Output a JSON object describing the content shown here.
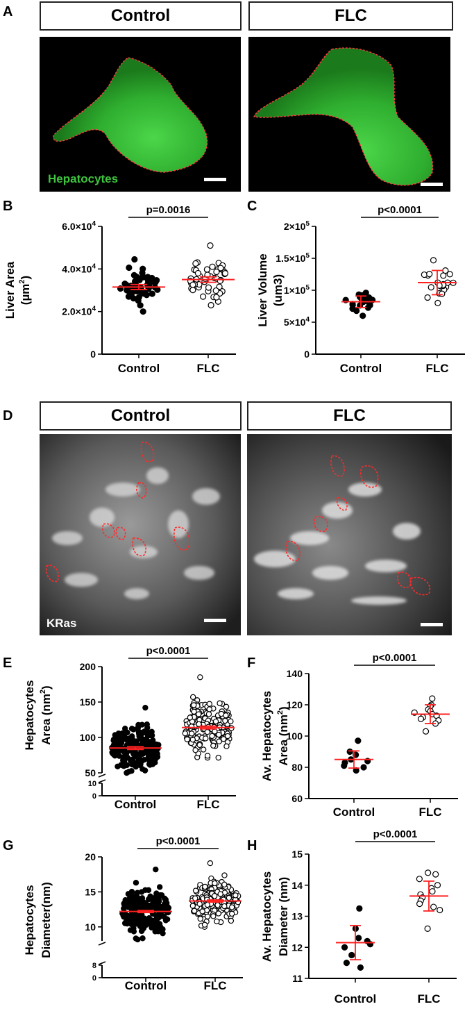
{
  "panelA": {
    "letter": "A",
    "header_control": "Control",
    "header_flc": "FLC",
    "stain_label": "Hepatocytes",
    "colors": {
      "stain": "#3ec43e",
      "outline": "#ff3b3b"
    }
  },
  "panelD": {
    "letter": "D",
    "header_control": "Control",
    "header_flc": "FLC",
    "stain_label": "KRas"
  },
  "chart_data": [
    {
      "id": "B",
      "type": "scatter",
      "ylabel_line1": "Liver Area",
      "ylabel_line2_prefix": "(µm",
      "ylabel_sup": "2",
      "ylabel_line2_suffix": ")",
      "categories": [
        "Control",
        "FLC"
      ],
      "pvalue": "p=0.0016",
      "ylim": [
        0,
        60000
      ],
      "yticks": [
        {
          "value": 0,
          "base": "0",
          "exp": ""
        },
        {
          "value": 20000,
          "base": "2.0×10",
          "exp": "4"
        },
        {
          "value": 40000,
          "base": "4.0×10",
          "exp": "4"
        },
        {
          "value": 60000,
          "base": "6.0×10",
          "exp": "4"
        }
      ],
      "series": [
        {
          "category": "Control",
          "marker": "filled",
          "mean": 31500,
          "err": 1200,
          "count": 50,
          "min": 20000,
          "max": 44500
        },
        {
          "category": "FLC",
          "marker": "open",
          "mean": 35000,
          "err": 1300,
          "count": 50,
          "min": 23000,
          "max": 51000
        }
      ]
    },
    {
      "id": "C",
      "type": "scatter",
      "ylabel_line1": "Liver Volume",
      "ylabel_line2_prefix": "(um3)",
      "ylabel_sup": "",
      "ylabel_line2_suffix": "",
      "categories": [
        "Control",
        "FLC"
      ],
      "pvalue": "p<0.0001",
      "ylim": [
        0,
        200000
      ],
      "yticks": [
        {
          "value": 0,
          "base": "0",
          "exp": ""
        },
        {
          "value": 50000,
          "base": "5×10",
          "exp": "4"
        },
        {
          "value": 100000,
          "base": "1×10",
          "exp": "5"
        },
        {
          "value": 150000,
          "base": "1.5×10",
          "exp": "5"
        },
        {
          "value": 200000,
          "base": "2×10",
          "exp": "5"
        }
      ],
      "series": [
        {
          "category": "Control",
          "marker": "filled",
          "mean": 82000,
          "sd": 9000,
          "count": 22,
          "min": 60000,
          "max": 96000
        },
        {
          "category": "FLC",
          "marker": "open",
          "mean": 112000,
          "sd": 19000,
          "count": 22,
          "min": 80000,
          "max": 147000
        }
      ]
    },
    {
      "id": "E",
      "type": "scatter",
      "ylabel_line1": "Hepatocytes",
      "ylabel_line2_prefix": "Area (nm",
      "ylabel_sup": "2",
      "ylabel_line2_suffix": ")",
      "categories": [
        "Control",
        "FLC"
      ],
      "pvalue": "p<0.0001",
      "axis_break": true,
      "ylim": [
        50,
        200
      ],
      "yticks": [
        {
          "value": 50,
          "base": "50",
          "exp": ""
        },
        {
          "value": 100,
          "base": "100",
          "exp": ""
        },
        {
          "value": 150,
          "base": "150",
          "exp": ""
        },
        {
          "value": 200,
          "base": "200",
          "exp": ""
        }
      ],
      "break_ticks": [
        "10",
        "0"
      ],
      "series": [
        {
          "category": "Control",
          "marker": "filled",
          "mean": 85,
          "err": 2,
          "count": 200,
          "min": 47,
          "max": 142
        },
        {
          "category": "FLC",
          "marker": "open",
          "mean": 114,
          "err": 2,
          "count": 200,
          "min": 72,
          "max": 185
        }
      ]
    },
    {
      "id": "F",
      "type": "scatter",
      "ylabel_line1": "Av. Hepatocytes",
      "ylabel_line2_prefix": "Area (nm",
      "ylabel_sup": "2",
      "ylabel_line2_suffix": ")",
      "categories": [
        "Control",
        "FLC"
      ],
      "pvalue": "p<0.0001",
      "ylim": [
        60,
        140
      ],
      "yticks": [
        {
          "value": 60,
          "base": "60",
          "exp": ""
        },
        {
          "value": 80,
          "base": "80",
          "exp": ""
        },
        {
          "value": 100,
          "base": "100",
          "exp": ""
        },
        {
          "value": 120,
          "base": "120",
          "exp": ""
        },
        {
          "value": 140,
          "base": "140",
          "exp": ""
        }
      ],
      "series": [
        {
          "category": "Control",
          "marker": "filled",
          "mean": 85,
          "sd": 5.5,
          "values": [
            97,
            90,
            88,
            85,
            84,
            83,
            81,
            80,
            78
          ]
        },
        {
          "category": "FLC",
          "marker": "open",
          "mean": 114,
          "sd": 6,
          "values": [
            124,
            120,
            119,
            117,
            116,
            115,
            114,
            113,
            112,
            111,
            110,
            108,
            103
          ]
        }
      ]
    },
    {
      "id": "G",
      "type": "scatter",
      "ylabel_line1": "Hepatocytes",
      "ylabel_line2_prefix": "Diameter(nm)",
      "ylabel_sup": "",
      "ylabel_line2_suffix": "",
      "categories": [
        "Control",
        "FLC"
      ],
      "pvalue": "p<0.0001",
      "axis_break": true,
      "ylim": [
        8,
        20
      ],
      "yticks": [
        {
          "value": 10,
          "base": "10",
          "exp": ""
        },
        {
          "value": 15,
          "base": "15",
          "exp": ""
        },
        {
          "value": 20,
          "base": "20",
          "exp": ""
        }
      ],
      "break_ticks": [
        "8",
        "0"
      ],
      "series": [
        {
          "category": "Control",
          "marker": "filled",
          "mean": 12.2,
          "err": 0.15,
          "count": 200,
          "min": 8.2,
          "max": 18.2
        },
        {
          "category": "FLC",
          "marker": "open",
          "mean": 13.7,
          "err": 0.15,
          "count": 200,
          "min": 10.0,
          "max": 19.1
        }
      ]
    },
    {
      "id": "H",
      "type": "scatter",
      "ylabel_line1": "Av. Hepatocytes",
      "ylabel_line2_prefix": "Diameter (nm)",
      "ylabel_sup": "",
      "ylabel_line2_suffix": "",
      "categories": [
        "Control",
        "FLC"
      ],
      "pvalue": "p<0.0001",
      "ylim": [
        11,
        15
      ],
      "yticks": [
        {
          "value": 11,
          "base": "11",
          "exp": ""
        },
        {
          "value": 12,
          "base": "12",
          "exp": ""
        },
        {
          "value": 13,
          "base": "13",
          "exp": ""
        },
        {
          "value": 14,
          "base": "14",
          "exp": ""
        },
        {
          "value": 15,
          "base": "15",
          "exp": ""
        }
      ],
      "series": [
        {
          "category": "Control",
          "marker": "filled",
          "mean": 12.15,
          "sd": 0.55,
          "values": [
            13.25,
            12.6,
            12.3,
            12.2,
            12.1,
            12.0,
            11.75,
            11.5,
            11.35
          ]
        },
        {
          "category": "FLC",
          "marker": "open",
          "mean": 13.65,
          "sd": 0.48,
          "values": [
            14.4,
            14.35,
            14.2,
            14.0,
            13.9,
            13.8,
            13.7,
            13.6,
            13.5,
            13.4,
            13.3,
            13.2,
            12.6
          ]
        }
      ]
    }
  ]
}
